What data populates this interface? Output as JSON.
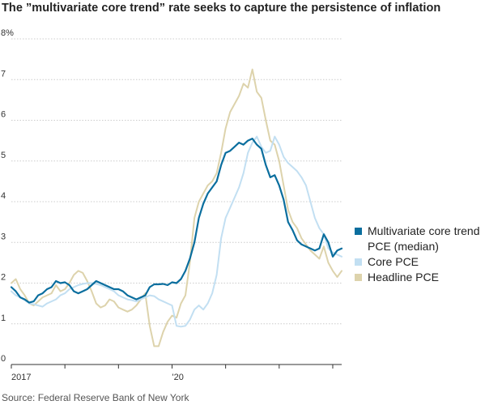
{
  "title": "The ”multivariate core trend” rate seeks to capture the persistence of inflation",
  "source": "Source: Federal Reserve Bank of New York",
  "chart_data": {
    "type": "line",
    "y_unit": "%",
    "ylim": [
      0,
      8
    ],
    "y_ticks": [
      "8%",
      "7",
      "6",
      "5",
      "4",
      "3",
      "2",
      "1",
      "0"
    ],
    "y_tick_values": [
      8,
      7,
      6,
      5,
      4,
      3,
      2,
      1,
      0
    ],
    "x_ticks": [
      "2017",
      "'20"
    ],
    "x_tick_dates": [
      "2017-01",
      "2020-01"
    ],
    "xlim": [
      "2017-01",
      "2023-03"
    ],
    "grid": true,
    "legend_position": "right",
    "x": [
      "2017-01",
      "2017-02",
      "2017-03",
      "2017-04",
      "2017-05",
      "2017-06",
      "2017-07",
      "2017-08",
      "2017-09",
      "2017-10",
      "2017-11",
      "2017-12",
      "2018-01",
      "2018-02",
      "2018-03",
      "2018-04",
      "2018-05",
      "2018-06",
      "2018-07",
      "2018-08",
      "2018-09",
      "2018-10",
      "2018-11",
      "2018-12",
      "2019-01",
      "2019-02",
      "2019-03",
      "2019-04",
      "2019-05",
      "2019-06",
      "2019-07",
      "2019-08",
      "2019-09",
      "2019-10",
      "2019-11",
      "2019-12",
      "2020-01",
      "2020-02",
      "2020-03",
      "2020-04",
      "2020-05",
      "2020-06",
      "2020-07",
      "2020-08",
      "2020-09",
      "2020-10",
      "2020-11",
      "2020-12",
      "2021-01",
      "2021-02",
      "2021-03",
      "2021-04",
      "2021-05",
      "2021-06",
      "2021-07",
      "2021-08",
      "2021-09",
      "2021-10",
      "2021-11",
      "2021-12",
      "2022-01",
      "2022-02",
      "2022-03",
      "2022-04",
      "2022-05",
      "2022-06",
      "2022-07",
      "2022-08",
      "2022-09",
      "2022-10",
      "2022-11",
      "2022-12",
      "2023-01",
      "2023-02",
      "2023-03"
    ],
    "series": [
      {
        "name": "Multivariate core trend PCE (median)",
        "color": "#0a6e9e",
        "values": [
          1.9,
          1.8,
          1.65,
          1.6,
          1.52,
          1.55,
          1.7,
          1.75,
          1.85,
          1.9,
          2.05,
          2.0,
          2.02,
          1.95,
          1.8,
          1.75,
          1.8,
          1.85,
          1.95,
          2.05,
          2.0,
          1.95,
          1.9,
          1.85,
          1.85,
          1.8,
          1.7,
          1.65,
          1.6,
          1.65,
          1.7,
          1.9,
          1.97,
          1.97,
          1.98,
          1.95,
          2.02,
          2.0,
          2.1,
          2.3,
          2.6,
          3.0,
          3.6,
          3.95,
          4.2,
          4.35,
          4.5,
          4.9,
          5.2,
          5.25,
          5.35,
          5.45,
          5.4,
          5.5,
          5.55,
          5.4,
          5.3,
          4.9,
          4.6,
          4.65,
          4.4,
          4.05,
          3.5,
          3.3,
          3.05,
          2.95,
          2.9,
          2.85,
          2.8,
          2.85,
          3.2,
          3.0,
          2.65,
          2.8,
          2.85
        ]
      },
      {
        "name": "Core PCE",
        "color": "#c2dff2",
        "values": [
          1.8,
          1.7,
          1.65,
          1.58,
          1.5,
          1.48,
          1.45,
          1.42,
          1.5,
          1.55,
          1.6,
          1.7,
          1.75,
          1.85,
          1.9,
          1.95,
          1.98,
          2.0,
          2.0,
          1.98,
          1.95,
          1.9,
          1.85,
          1.8,
          1.7,
          1.65,
          1.6,
          1.58,
          1.55,
          1.6,
          1.65,
          1.7,
          1.68,
          1.6,
          1.55,
          1.5,
          1.45,
          0.95,
          0.93,
          0.95,
          1.1,
          1.35,
          1.45,
          1.35,
          1.5,
          1.75,
          2.2,
          3.1,
          3.6,
          3.85,
          4.1,
          4.35,
          4.7,
          5.2,
          5.45,
          5.6,
          5.35,
          5.2,
          5.25,
          5.6,
          5.4,
          5.1,
          4.95,
          4.85,
          4.75,
          4.6,
          4.4,
          4.0,
          3.6,
          3.35,
          3.2,
          2.85,
          2.75,
          2.7,
          2.65
        ]
      },
      {
        "name": "Headline PCE",
        "color": "#ddd3ac",
        "values": [
          2.0,
          2.1,
          1.85,
          1.7,
          1.5,
          1.45,
          1.55,
          1.65,
          1.7,
          1.75,
          1.95,
          1.8,
          1.85,
          2.0,
          2.2,
          2.3,
          2.25,
          2.05,
          1.8,
          1.5,
          1.4,
          1.45,
          1.6,
          1.55,
          1.4,
          1.35,
          1.3,
          1.35,
          1.45,
          1.6,
          1.75,
          0.95,
          0.45,
          0.45,
          0.8,
          1.05,
          1.2,
          1.15,
          1.5,
          1.7,
          2.5,
          3.6,
          4.0,
          4.2,
          4.4,
          4.5,
          4.7,
          5.2,
          5.8,
          6.2,
          6.4,
          6.6,
          6.9,
          6.8,
          7.25,
          6.7,
          6.55,
          6.0,
          5.5,
          5.4,
          5.0,
          4.4,
          3.8,
          3.5,
          3.35,
          3.1,
          2.95,
          2.8,
          2.7,
          2.6,
          2.9,
          2.5,
          2.3,
          2.15,
          2.3
        ]
      }
    ]
  }
}
